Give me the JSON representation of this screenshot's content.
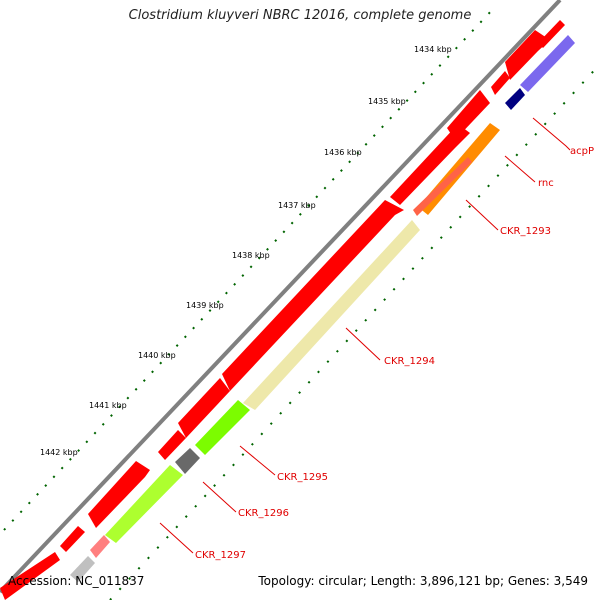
{
  "map": {
    "title": "Clostridium kluyveri NBRC 12016, complete genome",
    "accession": "Accession: NC_011837",
    "summary": "Topology: circular; Length: 3,896,121 bp; Genes: 3,549",
    "colors": {
      "backbone": "#808080",
      "cds": "#ff0000",
      "tick": "#006400",
      "label": "#e00000"
    },
    "ticks": [
      "1434 kbp",
      "1435 kbp",
      "1436 kbp",
      "1437 kbp",
      "1438 kbp",
      "1439 kbp",
      "1440 kbp",
      "1441 kbp",
      "1442 kbp"
    ],
    "genes": [
      {
        "label": "acpP",
        "color": "#000080"
      },
      {
        "label": "rnc",
        "color": "#ff8c00"
      },
      {
        "label": "CKR_1293",
        "color": "#ff6347"
      },
      {
        "label": "CKR_1294",
        "color": "#eee8aa"
      },
      {
        "label": "CKR_1295",
        "color": "#7cfc00"
      },
      {
        "label": "CKR_1296",
        "color": "#696969"
      },
      {
        "label": "CKR_1297",
        "color": "#adff2f"
      }
    ]
  }
}
